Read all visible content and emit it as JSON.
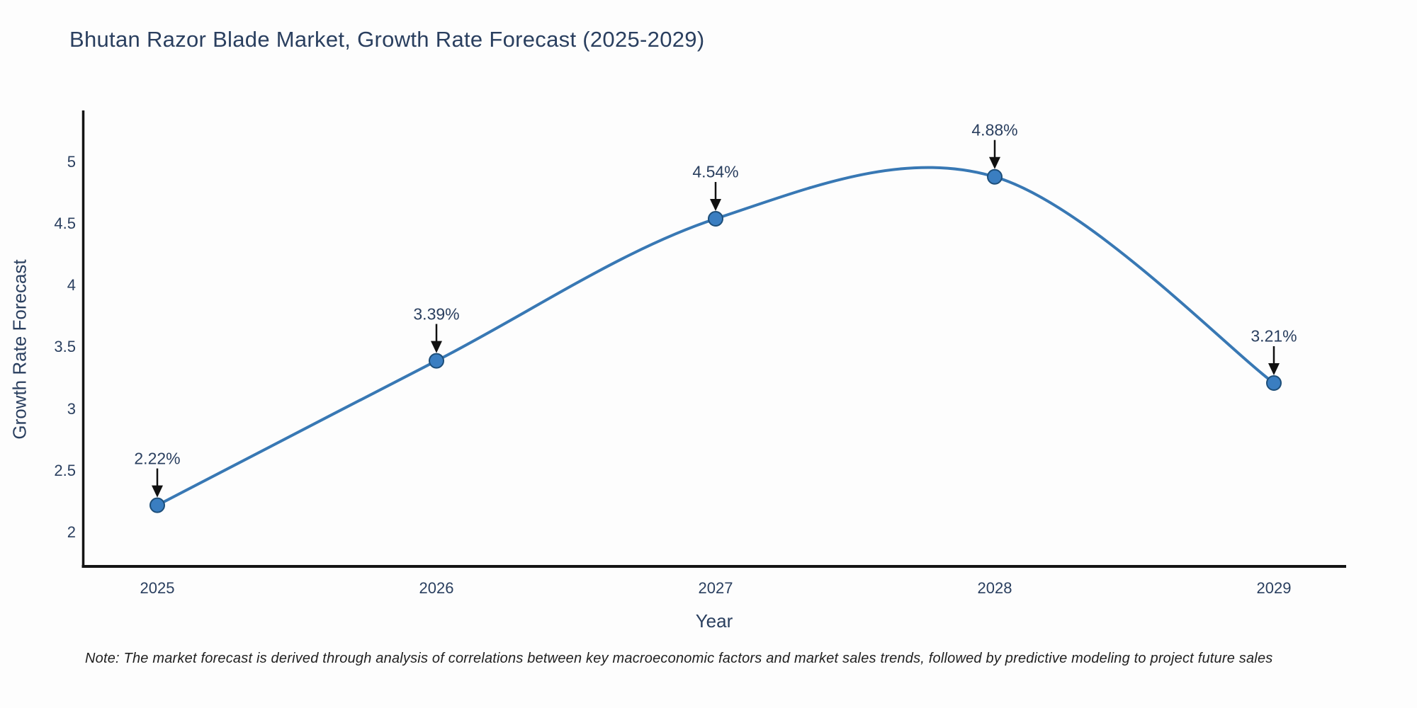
{
  "title": "Bhutan Razor Blade Market, Growth Rate Forecast (2025-2029)",
  "note": "Note: The market forecast is derived through analysis of correlations between key macroeconomic factors and market sales trends, followed by predictive modeling to project future sales",
  "chart_data": {
    "type": "line",
    "title": "Bhutan Razor Blade Market, Growth Rate Forecast (2025-2029)",
    "xlabel": "Year",
    "ylabel": "Growth Rate Forecast",
    "x": [
      2025,
      2026,
      2027,
      2028,
      2029
    ],
    "y": [
      2.22,
      3.39,
      4.54,
      4.88,
      3.21
    ],
    "point_labels": [
      "2.22%",
      "3.39%",
      "4.54%",
      "4.88%",
      "3.21%"
    ],
    "yticks": [
      2,
      2.5,
      3,
      3.5,
      4,
      4.5,
      5
    ],
    "ylim": [
      1.72,
      5.43
    ],
    "line_shape": "spline",
    "grid": false,
    "legend": "none",
    "colors": {
      "line": "#3878b4",
      "marker_fill": "#3a7ec1",
      "marker_edge": "#1d4e79",
      "arrow": "#111111",
      "axis": "#141414",
      "text": "#2a3f5f"
    }
  }
}
